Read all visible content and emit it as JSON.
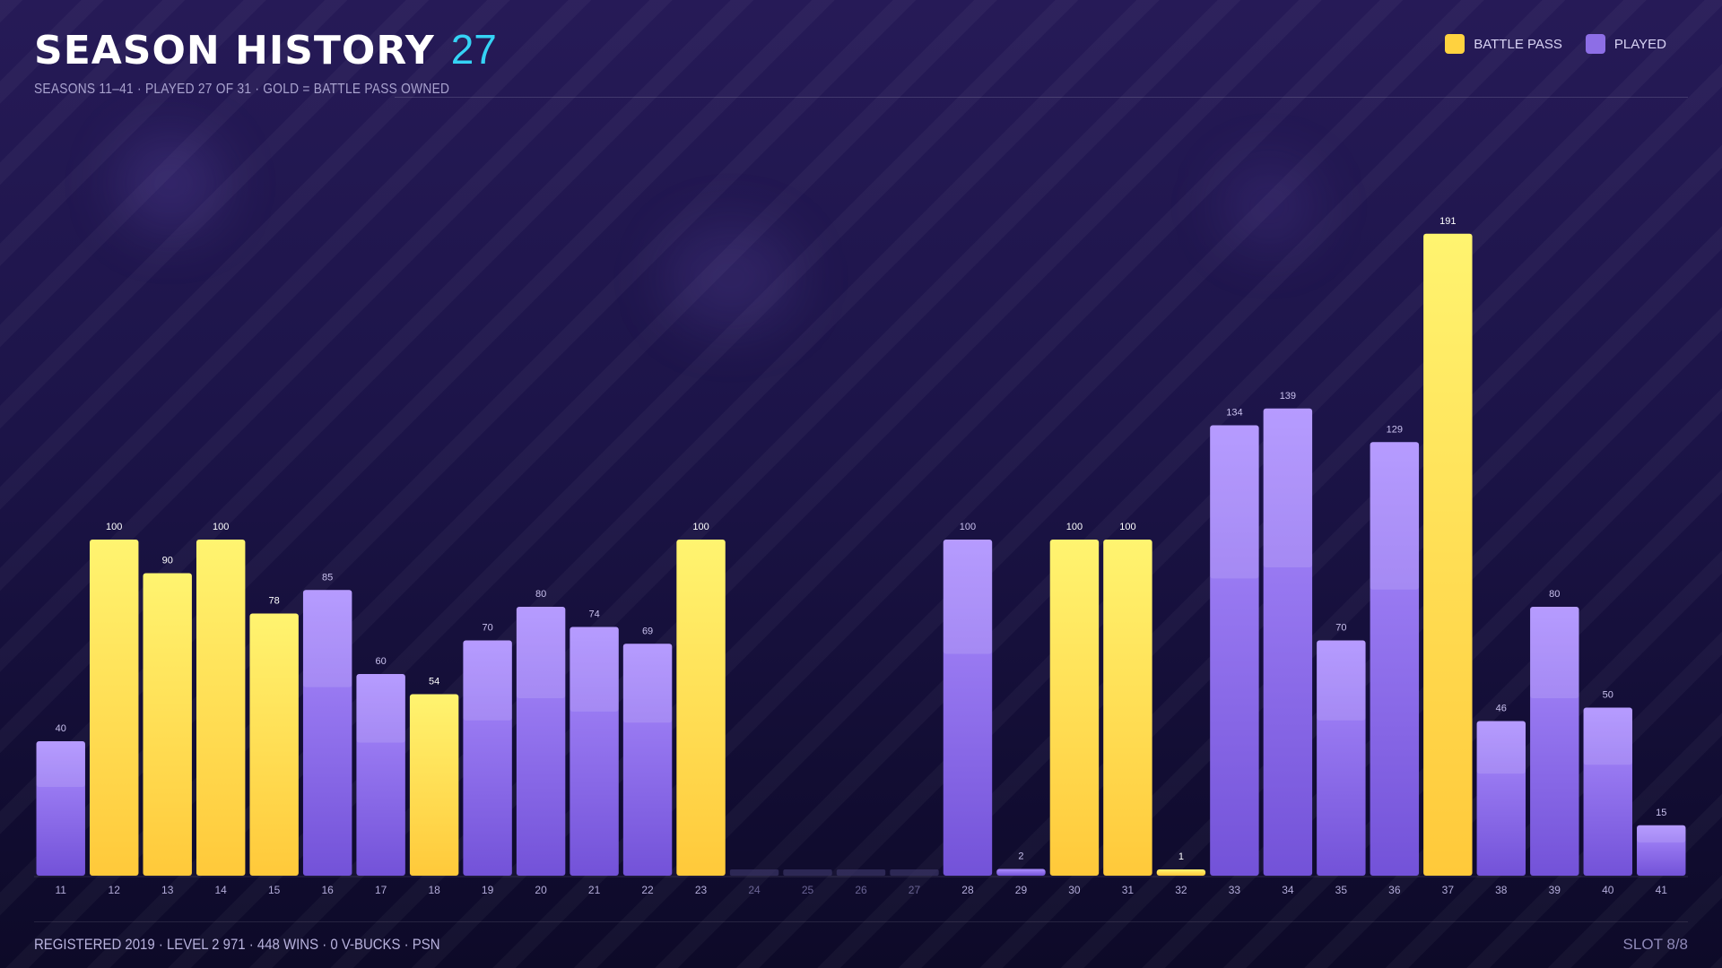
{
  "header": {
    "title": "SEASON HISTORY",
    "count": "27",
    "subtitle": "SEASONS 11–41 · PLAYED 27 OF 31 · GOLD = BATTLE PASS OWNED"
  },
  "legend": [
    {
      "label": "BATTLE PASS",
      "color": "#ffd23f"
    },
    {
      "label": "PLAYED",
      "color": "#8d6ee6"
    }
  ],
  "footer": {
    "left": "REGISTERED 2019 · LEVEL 2 971 · 448 WINS · 0 V-BUCKS · PSN",
    "right": "SLOT 8/8"
  },
  "colors": {
    "gold_top": "#fff470",
    "gold_bottom": "#ffc93a",
    "purple_top": "#ac8eff",
    "purple_bottom": "#7352d8",
    "empty": "#3a3466",
    "accent": "#35d3f5"
  },
  "chart_data": {
    "type": "bar",
    "categories": [
      "11",
      "12",
      "13",
      "14",
      "15",
      "16",
      "17",
      "18",
      "19",
      "20",
      "21",
      "22",
      "23",
      "24",
      "25",
      "26",
      "27",
      "28",
      "29",
      "30",
      "31",
      "32",
      "33",
      "34",
      "35",
      "36",
      "37",
      "38",
      "39",
      "40",
      "41"
    ],
    "values": [
      40,
      100,
      90,
      100,
      78,
      85,
      60,
      54,
      70,
      80,
      74,
      69,
      100,
      0,
      0,
      0,
      0,
      100,
      2,
      100,
      100,
      1,
      134,
      139,
      70,
      129,
      191,
      46,
      80,
      50,
      15
    ],
    "value_labels": [
      "40",
      "100",
      "90",
      "100",
      "78",
      "85",
      "60",
      "54",
      "70",
      "80",
      "74",
      "69",
      "100",
      "",
      "",
      "",
      "",
      "100",
      "2",
      "100",
      "100",
      "1",
      "134",
      "139",
      "70",
      "129",
      "191",
      "46",
      "80",
      "50",
      "15"
    ],
    "battle_pass": [
      false,
      true,
      true,
      true,
      true,
      false,
      false,
      true,
      false,
      false,
      false,
      false,
      true,
      false,
      false,
      false,
      false,
      false,
      false,
      true,
      true,
      true,
      false,
      false,
      false,
      false,
      true,
      false,
      false,
      false,
      false
    ],
    "played": [
      true,
      true,
      true,
      true,
      true,
      true,
      true,
      true,
      true,
      true,
      true,
      true,
      true,
      false,
      false,
      false,
      false,
      true,
      true,
      true,
      true,
      true,
      true,
      true,
      true,
      true,
      true,
      true,
      true,
      true,
      true
    ],
    "ylim": [
      0,
      200
    ],
    "xlabel": "",
    "ylabel": "",
    "grid": false
  }
}
